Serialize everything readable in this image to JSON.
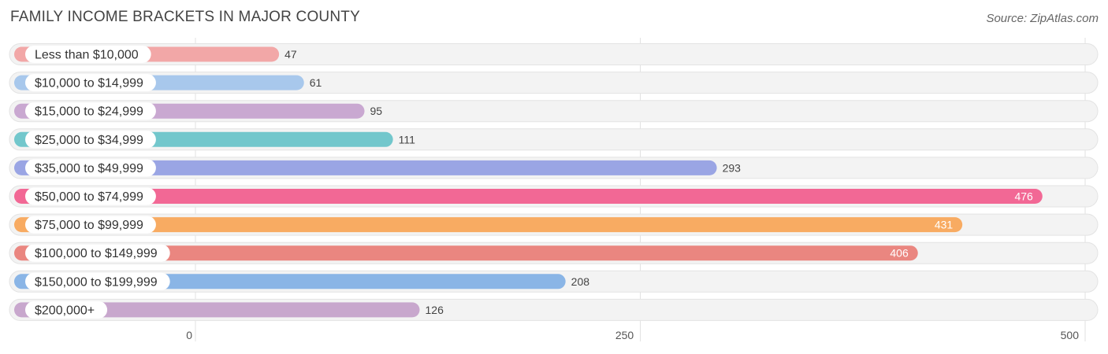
{
  "header": {
    "title": "FAMILY INCOME BRACKETS IN MAJOR COUNTY",
    "source": "Source: ZipAtlas.com"
  },
  "chart_data": {
    "type": "bar",
    "orientation": "horizontal",
    "title": "FAMILY INCOME BRACKETS IN MAJOR COUNTY",
    "xlabel": "",
    "ylabel": "",
    "xlim": [
      0,
      500
    ],
    "ticks": [
      0,
      250,
      500
    ],
    "tick_labels": [
      "0",
      "250",
      "500"
    ],
    "grid": true,
    "categories": [
      "Less than $10,000",
      "$10,000 to $14,999",
      "$15,000 to $24,999",
      "$25,000 to $34,999",
      "$35,000 to $49,999",
      "$50,000 to $74,999",
      "$75,000 to $99,999",
      "$100,000 to $149,999",
      "$150,000 to $199,999",
      "$200,000+"
    ],
    "values": [
      47,
      61,
      95,
      111,
      293,
      476,
      431,
      406,
      208,
      126
    ],
    "value_labels": [
      "47",
      "61",
      "95",
      "111",
      "293",
      "476",
      "431",
      "406",
      "208",
      "126"
    ],
    "colors": [
      "#f2a7a7",
      "#a8c8ec",
      "#c9a8d1",
      "#72c7cc",
      "#9aa5e4",
      "#f26895",
      "#f8ab62",
      "#ea8680",
      "#8ab5e6",
      "#c8a7cd"
    ],
    "label_inside_bar": [
      false,
      false,
      false,
      false,
      false,
      true,
      true,
      true,
      false,
      false
    ]
  }
}
